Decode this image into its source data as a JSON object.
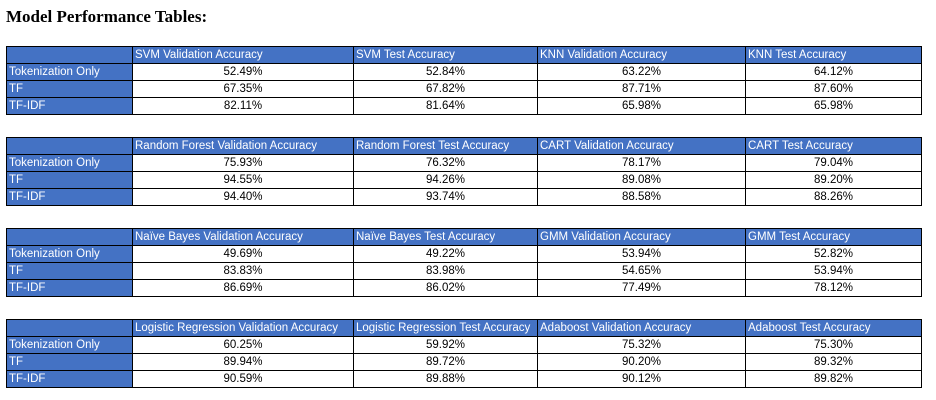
{
  "title": "Model Performance Tables:",
  "colors": {
    "header_fill": "#4472c4",
    "header_text": "#ffffff",
    "cell_fill": "#ffffff",
    "border": "#000000"
  },
  "row_labels": [
    "Tokenization Only",
    "TF",
    "TF-IDF"
  ],
  "tables": [
    {
      "headers": [
        "SVM Validation Accuracy",
        "SVM Test Accuracy",
        "KNN Validation Accuracy",
        "KNN Test Accuracy"
      ],
      "rows": [
        [
          "52.49%",
          "52.84%",
          "63.22%",
          "64.12%"
        ],
        [
          "67.35%",
          "67.82%",
          "87.71%",
          "87.60%"
        ],
        [
          "82.11%",
          "81.64%",
          "65.98%",
          "65.98%"
        ]
      ]
    },
    {
      "headers": [
        "Random Forest Validation Accuracy",
        "Random Forest Test Accuracy",
        "CART Validation Accuracy",
        "CART Test Accuracy"
      ],
      "rows": [
        [
          "75.93%",
          "76.32%",
          "78.17%",
          "79.04%"
        ],
        [
          "94.55%",
          "94.26%",
          "89.08%",
          "89.20%"
        ],
        [
          "94.40%",
          "93.74%",
          "88.58%",
          "88.26%"
        ]
      ]
    },
    {
      "headers": [
        "Naïve Bayes Validation Accuracy",
        "Naïve Bayes Test Accuracy",
        "GMM Validation Accuracy",
        "GMM Test Accuracy"
      ],
      "rows": [
        [
          "49.69%",
          "49.22%",
          "53.94%",
          "52.82%"
        ],
        [
          "83.83%",
          "83.98%",
          "54.65%",
          "53.94%"
        ],
        [
          "86.69%",
          "86.02%",
          "77.49%",
          "78.12%"
        ]
      ]
    },
    {
      "headers": [
        "Logistic Regression Validation Accuracy",
        "Logistic Regression Test Accuracy",
        "Adaboost Validation Accuracy",
        "Adaboost Test Accuracy"
      ],
      "rows": [
        [
          "60.25%",
          "59.92%",
          "75.32%",
          "75.30%"
        ],
        [
          "89.94%",
          "89.72%",
          "90.20%",
          "89.32%"
        ],
        [
          "90.59%",
          "89.88%",
          "90.12%",
          "89.82%"
        ]
      ]
    }
  ]
}
